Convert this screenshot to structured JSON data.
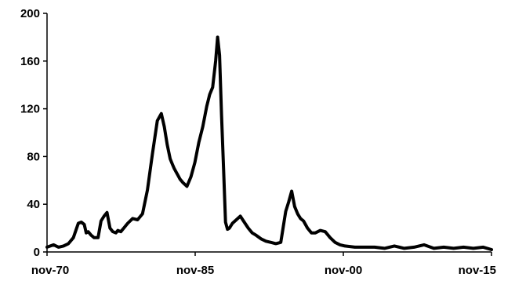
{
  "chart_data": {
    "type": "line",
    "title": "",
    "xlabel": "",
    "ylabel": "",
    "ylim": [
      0,
      200
    ],
    "yticks": [
      0,
      40,
      80,
      120,
      160,
      200
    ],
    "xlim": [
      1970.83,
      2015.83
    ],
    "xticks": [
      {
        "x": 1970.83,
        "label": "nov-70"
      },
      {
        "x": 1985.83,
        "label": "nov-85"
      },
      {
        "x": 2000.83,
        "label": "nov-00"
      },
      {
        "x": 2015.83,
        "label": "nov-15"
      }
    ],
    "grid": false,
    "legend": "none",
    "series_color": "#000000",
    "series": [
      {
        "x": [
          1970.83,
          1971.5,
          1972.0,
          1972.5,
          1973.0,
          1973.5,
          1974.0,
          1974.3,
          1974.6,
          1974.8,
          1975.0,
          1975.3,
          1975.6,
          1976.0,
          1976.3,
          1976.6,
          1976.9,
          1977.2,
          1977.5,
          1977.8,
          1978.0,
          1978.3,
          1978.6,
          1979.0,
          1979.5,
          1980.0,
          1980.5,
          1981.0,
          1981.5,
          1982.0,
          1982.4,
          1982.7,
          1983.0,
          1983.3,
          1983.5,
          1983.7,
          1983.9,
          1984.1,
          1984.3,
          1984.6,
          1985.0,
          1985.4,
          1985.8,
          1986.2,
          1986.6,
          1987.0,
          1987.3,
          1987.6,
          1987.9,
          1988.1,
          1988.3,
          1988.5,
          1988.7,
          1988.9,
          1989.1,
          1989.3,
          1989.6,
          1990.0,
          1990.4,
          1990.8,
          1991.2,
          1991.6,
          1992.0,
          1992.5,
          1993.0,
          1993.5,
          1994.0,
          1994.5,
          1995.0,
          1995.3,
          1995.6,
          1995.9,
          1996.2,
          1996.5,
          1996.8,
          1997.2,
          1997.6,
          1998.0,
          1998.5,
          1999.0,
          1999.5,
          2000.0,
          2000.5,
          2001.0,
          2002.0,
          2003.0,
          2004.0,
          2005.0,
          2006.0,
          2007.0,
          2008.0,
          2009.0,
          2010.0,
          2011.0,
          2012.0,
          2013.0,
          2014.0,
          2015.0,
          2015.83
        ],
        "y": [
          4,
          6,
          4,
          5,
          7,
          12,
          24,
          25,
          23,
          16,
          17,
          14,
          12,
          12,
          26,
          30,
          33,
          20,
          17,
          16,
          18,
          17,
          20,
          24,
          28,
          27,
          32,
          52,
          82,
          110,
          116,
          105,
          90,
          78,
          74,
          70,
          67,
          64,
          61,
          58,
          55,
          63,
          75,
          92,
          105,
          122,
          132,
          138,
          160,
          180,
          165,
          115,
          70,
          25,
          19,
          20,
          24,
          27,
          30,
          25,
          20,
          16,
          14,
          11,
          9,
          8,
          7,
          8,
          34,
          42,
          51,
          38,
          32,
          28,
          26,
          20,
          16,
          16,
          18,
          17,
          12,
          8,
          6,
          5,
          4,
          4,
          4,
          3,
          5,
          3,
          4,
          6,
          3,
          4,
          3,
          4,
          3,
          4,
          2
        ]
      }
    ]
  }
}
